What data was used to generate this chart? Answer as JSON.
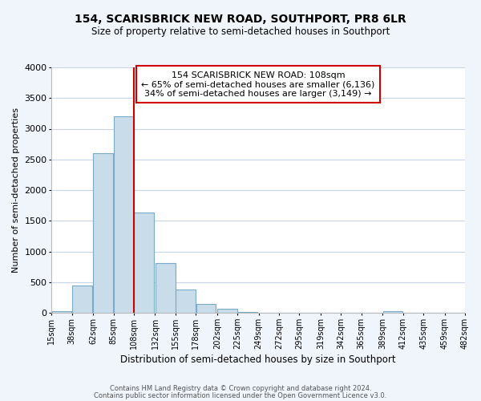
{
  "title": "154, SCARISBRICK NEW ROAD, SOUTHPORT, PR8 6LR",
  "subtitle": "Size of property relative to semi-detached houses in Southport",
  "xlabel": "Distribution of semi-detached houses by size in Southport",
  "ylabel": "Number of semi-detached properties",
  "footnote1": "Contains HM Land Registry data © Crown copyright and database right 2024.",
  "footnote2": "Contains public sector information licensed under the Open Government Licence v3.0.",
  "annotation_line1": "154 SCARISBRICK NEW ROAD: 108sqm",
  "annotation_line2": "← 65% of semi-detached houses are smaller (6,136)",
  "annotation_line3": "34% of semi-detached houses are larger (3,149) →",
  "bar_left_edges": [
    15,
    38,
    62,
    85,
    108,
    132,
    155,
    178,
    202,
    225,
    249,
    272,
    295,
    319,
    342,
    365,
    389,
    412,
    435,
    459
  ],
  "bar_heights": [
    20,
    450,
    2600,
    3200,
    1640,
    810,
    380,
    150,
    60,
    10,
    5,
    2,
    0,
    0,
    0,
    0,
    30,
    0,
    0,
    0
  ],
  "bar_color": "#c8dcea",
  "bar_edgecolor": "#7baac8",
  "vline_x": 108,
  "vline_color": "#cc0000",
  "ylim": [
    0,
    4000
  ],
  "xlim": [
    15,
    482
  ],
  "xtick_labels": [
    "15sqm",
    "38sqm",
    "62sqm",
    "85sqm",
    "108sqm",
    "132sqm",
    "155sqm",
    "178sqm",
    "202sqm",
    "225sqm",
    "249sqm",
    "272sqm",
    "295sqm",
    "319sqm",
    "342sqm",
    "365sqm",
    "389sqm",
    "412sqm",
    "435sqm",
    "459sqm",
    "482sqm"
  ],
  "xtick_positions": [
    15,
    38,
    62,
    85,
    108,
    132,
    155,
    178,
    202,
    225,
    249,
    272,
    295,
    319,
    342,
    365,
    389,
    412,
    435,
    459,
    482
  ],
  "grid_color": "#c8d4e8",
  "plot_background": "#ffffff",
  "fig_background": "#f0f4fb",
  "annotation_box_facecolor": "#ffffff",
  "annotation_box_edgecolor": "#cc0000",
  "title_fontsize": 10,
  "subtitle_fontsize": 8.5
}
